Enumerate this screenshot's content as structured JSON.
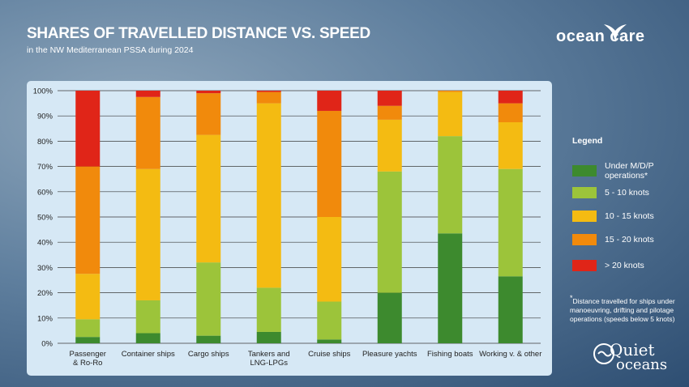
{
  "header": {
    "title": "SHARES OF TRAVELLED DISTANCE VS. SPEED",
    "subtitle": "in the NW Mediterranean PSSA during 2024"
  },
  "brand": {
    "ocean_care": "ocean care",
    "quiet_oceans_1": "Quiet",
    "quiet_oceans_2": "oceans"
  },
  "legend": {
    "title": "Legend",
    "items": [
      {
        "label": "Under M/D/P\noperations*",
        "color": "#3d8a2e"
      },
      {
        "label": "5 - 10 knots",
        "color": "#9cc43a"
      },
      {
        "label": "10 - 15 knots",
        "color": "#f4bb12"
      },
      {
        "label": "15 - 20 knots",
        "color": "#f18a0c"
      },
      {
        "label": "> 20 knots",
        "color": "#e02518"
      }
    ]
  },
  "footnote": {
    "marker": "*",
    "text": "Distance travelled for ships under manoeuvring, drifting and pilotage operations (speeds below 5 knots)"
  },
  "chart_data": {
    "type": "bar",
    "stacked": true,
    "categories": [
      "Passenger\n& Ro-Ro",
      "Container ships",
      "Cargo ships",
      "Tankers and\nLNG-LPGs",
      "Cruise ships",
      "Pleasure yachts",
      "Fishing boats",
      "Working v. & other"
    ],
    "ylim": [
      0,
      100
    ],
    "yticks": [
      "0%",
      "10%",
      "20%",
      "30%",
      "40%",
      "50%",
      "60%",
      "70%",
      "80%",
      "90%",
      "100%"
    ],
    "grid": true,
    "series": [
      {
        "name": "Under M/D/P operations*",
        "color": "#3d8a2e",
        "values": [
          2.5,
          4,
          3,
          4.5,
          1.5,
          20,
          43.5,
          26.5
        ]
      },
      {
        "name": "5 - 10 knots",
        "color": "#9cc43a",
        "values": [
          7,
          13,
          29,
          17.5,
          15,
          48,
          38.5,
          42.5
        ]
      },
      {
        "name": "10 - 15 knots",
        "color": "#f4bb12",
        "values": [
          18,
          52,
          50.5,
          73,
          33.5,
          20.5,
          17.5,
          18.5
        ]
      },
      {
        "name": "15 - 20 knots",
        "color": "#f18a0c",
        "values": [
          42.5,
          28.5,
          16.5,
          4.5,
          42,
          5.5,
          0.5,
          7.5
        ]
      },
      {
        "name": "> 20 knots",
        "color": "#e02518",
        "values": [
          30,
          2.5,
          1,
          0.5,
          8,
          6,
          0,
          5
        ]
      }
    ]
  }
}
